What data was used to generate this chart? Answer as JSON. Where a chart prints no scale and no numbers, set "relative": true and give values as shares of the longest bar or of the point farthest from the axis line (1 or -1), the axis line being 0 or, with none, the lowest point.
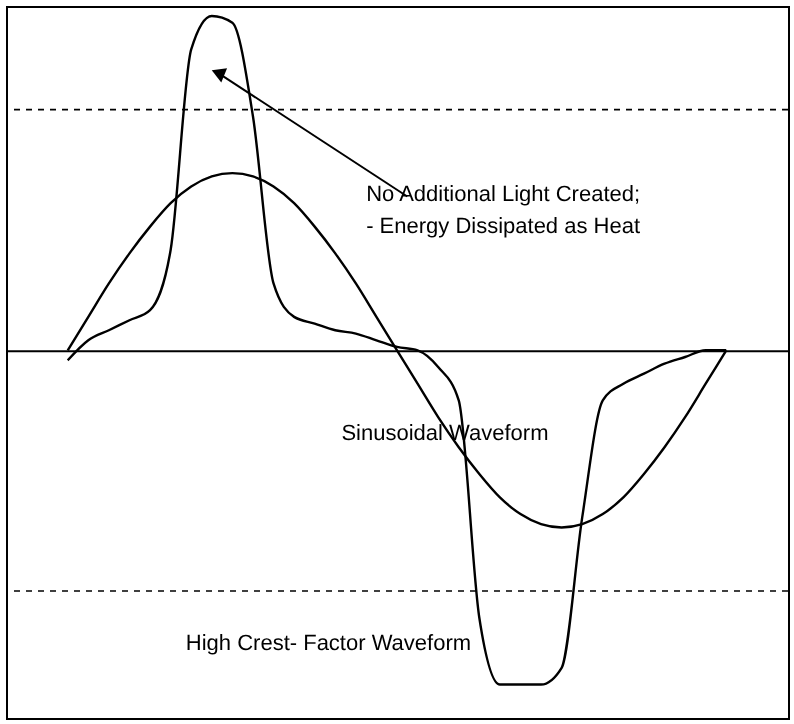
{
  "chart_data": {
    "type": "line",
    "relative": true,
    "marker": "none",
    "line_style": "solid",
    "categories": [
      null,
      null,
      null,
      null,
      null,
      null,
      null,
      null,
      null,
      null,
      null,
      null,
      null,
      null,
      null,
      null,
      null,
      null,
      null,
      null,
      null,
      null,
      null,
      null,
      null,
      null,
      null,
      null,
      null,
      null,
      null,
      null,
      null
    ],
    "series": [
      {
        "name": "Sinusoidal Waveform",
        "color": "#000000",
        "values": [
          0,
          0.1,
          0.2,
          0.29,
          0.37,
          0.44,
          0.49,
          0.52,
          0.53,
          0.52,
          0.49,
          0.44,
          0.37,
          0.29,
          0.2,
          0.1,
          0,
          -0.1,
          -0.2,
          -0.29,
          -0.37,
          -0.44,
          -0.49,
          -0.52,
          -0.53,
          -0.52,
          -0.49,
          -0.44,
          -0.37,
          -0.29,
          -0.2,
          -0.1,
          0
        ]
      },
      {
        "name": "High Crest- Factor Waveform",
        "color": "#000000",
        "values": [
          -0.03,
          0.03,
          0.06,
          0.09,
          0.12,
          0.3,
          0.9,
          1,
          0.98,
          0.7,
          0.2,
          0.1,
          0.08,
          0.06,
          0.05,
          0.03,
          0.01,
          0,
          -0.05,
          -0.15,
          -0.8,
          -1,
          -1,
          -1,
          -0.95,
          -0.5,
          -0.15,
          -0.1,
          -0.07,
          -0.04,
          -0.02,
          0,
          0
        ]
      }
    ],
    "ref_lines": [
      {
        "axis": "y",
        "value": 0.72,
        "color": "#000000",
        "line_style": "dashed"
      },
      {
        "axis": "y",
        "value": -0.72,
        "color": "#000000",
        "line_style": "dashed"
      }
    ],
    "annotations": [
      "No Additional Light Created;\n- Energy Dissipated as Heat"
    ]
  }
}
